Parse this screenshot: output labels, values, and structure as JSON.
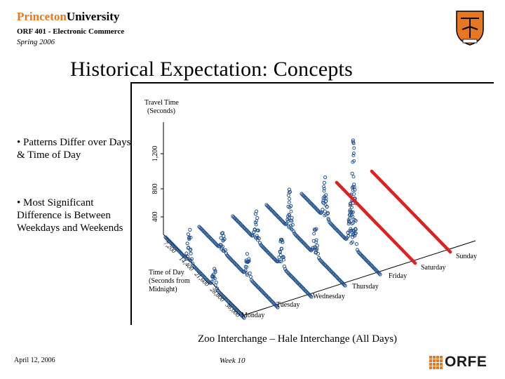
{
  "header": {
    "university_part1": "Princeton",
    "university_part2": "University",
    "course": "ORF 401 - Electronic Commerce",
    "term": "Spring 2006"
  },
  "slide": {
    "title": "Historical Expectation: Concepts",
    "bullets": [
      "• Patterns Differ over Days & Time of Day",
      "• Most Significant Difference is Between Weekdays and Weekends"
    ],
    "caption": "Zoo Interchange – Hale Interchange (All Days)"
  },
  "footer": {
    "date": "April 12, 2006",
    "week": "Week 10",
    "logo_text": "ORFE"
  },
  "colors": {
    "accent": "#e87722",
    "weekday_series": "#1f4e8c",
    "weekend_series": "#e02020"
  },
  "chart_data": {
    "type": "scatter",
    "title": "",
    "zlabel": "Travel Time (Seconds)",
    "z_ticks": [
      "400",
      "800",
      "1,200"
    ],
    "xlabel": "Time of Day (Seconds from Midnight)",
    "x_ticks": [
      "7,200",
      "14,400",
      "21,600",
      "28,800",
      "36,000",
      "43,200"
    ],
    "day_labels": [
      "Monday",
      "Tuesday",
      "Wednesday",
      "Thursday",
      "Friday",
      "Saturday",
      "Sunday"
    ],
    "series": [
      {
        "name": "Monday",
        "peaks": [
          {
            "t": 0.3,
            "h": 360
          },
          {
            "t": 0.62,
            "h": 220
          }
        ]
      },
      {
        "name": "Tuesday",
        "peaks": [
          {
            "t": 0.3,
            "h": 300
          },
          {
            "t": 0.62,
            "h": 250
          }
        ]
      },
      {
        "name": "Wednesday",
        "peaks": [
          {
            "t": 0.3,
            "h": 320
          },
          {
            "t": 0.62,
            "h": 300
          }
        ]
      },
      {
        "name": "Thursday",
        "peaks": [
          {
            "t": 0.3,
            "h": 480
          },
          {
            "t": 0.62,
            "h": 330
          }
        ]
      },
      {
        "name": "Friday",
        "peaks": [
          {
            "t": 0.3,
            "h": 500
          },
          {
            "t": 0.62,
            "h": 420
          },
          {
            "t": 0.66,
            "h": 950
          }
        ]
      },
      {
        "name": "Saturday",
        "peaks": []
      },
      {
        "name": "Sunday",
        "peaks": []
      }
    ]
  }
}
